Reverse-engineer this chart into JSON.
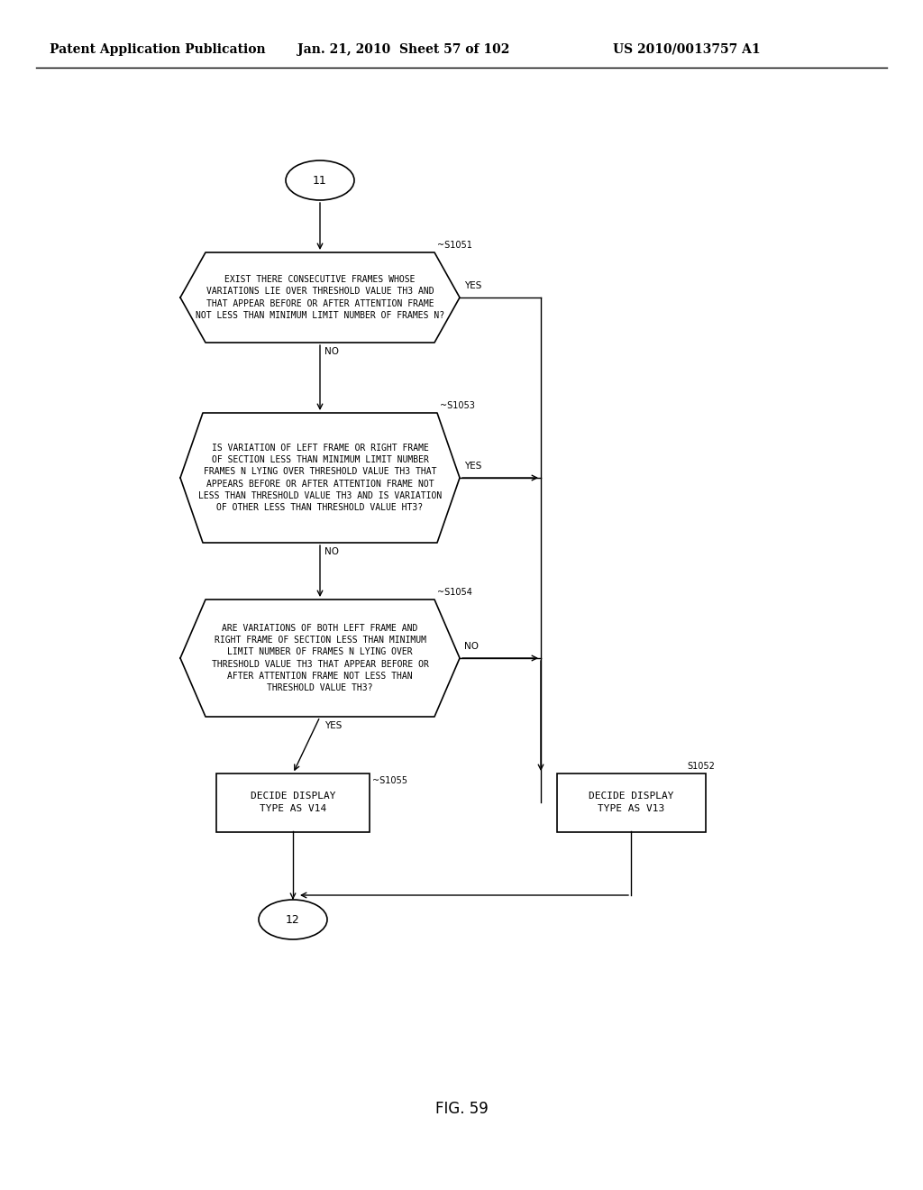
{
  "header_left": "Patent Application Publication",
  "header_mid": "Jan. 21, 2010  Sheet 57 of 102",
  "header_right": "US 2010/0013757 A1",
  "footer_label": "FIG. 59",
  "node_start": "11",
  "node_end": "12",
  "s1051_label": "~S1051",
  "s1053_label": "~S1053",
  "s1054_label": "~S1054",
  "s1055_label": "~S1055",
  "s1052_label": "S1052",
  "s1051_text": "EXIST THERE CONSECUTIVE FRAMES WHOSE\nVARIATIONS LIE OVER THRESHOLD VALUE TH3 AND\nTHAT APPEAR BEFORE OR AFTER ATTENTION FRAME\nNOT LESS THAN MINIMUM LIMIT NUMBER OF FRAMES N?",
  "s1053_text": "IS VARIATION OF LEFT FRAME OR RIGHT FRAME\nOF SECTION LESS THAN MINIMUM LIMIT NUMBER\nFRAMES N LYING OVER THRESHOLD VALUE TH3 THAT\nAPPEARS BEFORE OR AFTER ATTENTION FRAME NOT\nLESS THAN THRESHOLD VALUE TH3 AND IS VARIATION\nOF OTHER LESS THAN THRESHOLD VALUE HT3?",
  "s1054_text": "ARE VARIATIONS OF BOTH LEFT FRAME AND\nRIGHT FRAME OF SECTION LESS THAN MINIMUM\nLIMIT NUMBER OF FRAMES N LYING OVER\nTHRESHOLD VALUE TH3 THAT APPEAR BEFORE OR\nAFTER ATTENTION FRAME NOT LESS THAN\nTHRESHOLD VALUE TH3?",
  "s1055_text": "DECIDE DISPLAY\nTYPE AS V14",
  "s1052_text": "DECIDE DISPLAY\nTYPE AS V13",
  "yes_label": "YES",
  "no_label": "NO",
  "bg_color": "#ffffff",
  "line_color": "#000000",
  "text_color": "#000000",
  "font_size": 7.5,
  "header_font_size": 10
}
